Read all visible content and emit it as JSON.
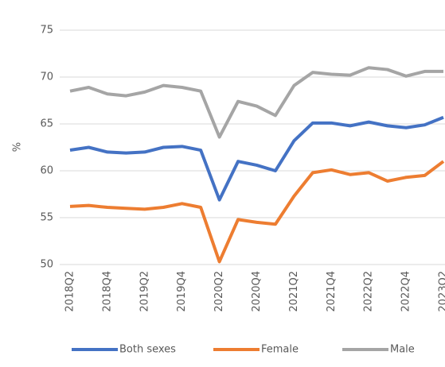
{
  "chart_data": {
    "type": "line",
    "categories": [
      "2018Q2",
      null,
      "2018Q4",
      null,
      "2019Q2",
      null,
      "2019Q4",
      null,
      "2020Q2",
      null,
      "2020Q4",
      null,
      "2021Q2",
      null,
      "2021Q4",
      null,
      "2022Q2",
      null,
      "2022Q4",
      null,
      "2023Q2"
    ],
    "series": [
      {
        "name": "Both sexes",
        "color": "#4472c4",
        "values": [
          62.2,
          62.5,
          62.0,
          61.9,
          62.0,
          62.5,
          62.6,
          62.2,
          56.9,
          61.0,
          60.6,
          60.0,
          63.2,
          65.1,
          65.1,
          64.8,
          65.2,
          64.8,
          64.6,
          64.9,
          65.7
        ]
      },
      {
        "name": "Female",
        "color": "#ed7d31",
        "values": [
          56.2,
          56.3,
          56.1,
          56.0,
          55.9,
          56.1,
          56.5,
          56.1,
          50.3,
          54.8,
          54.5,
          54.3,
          57.3,
          59.8,
          60.1,
          59.6,
          59.8,
          58.9,
          59.3,
          59.5,
          61.0
        ]
      },
      {
        "name": "Male",
        "color": "#a5a5a5",
        "values": [
          68.5,
          68.9,
          68.2,
          68.0,
          68.4,
          69.1,
          68.9,
          68.5,
          63.6,
          67.4,
          66.9,
          65.9,
          69.1,
          70.5,
          70.3,
          70.2,
          71.0,
          70.8,
          70.1,
          70.6,
          70.6
        ]
      }
    ],
    "y_label": "%",
    "ylim": [
      50,
      75
    ],
    "yticks": [
      50,
      55,
      60,
      65,
      70,
      75
    ],
    "grid": true,
    "legend": "bottom"
  }
}
